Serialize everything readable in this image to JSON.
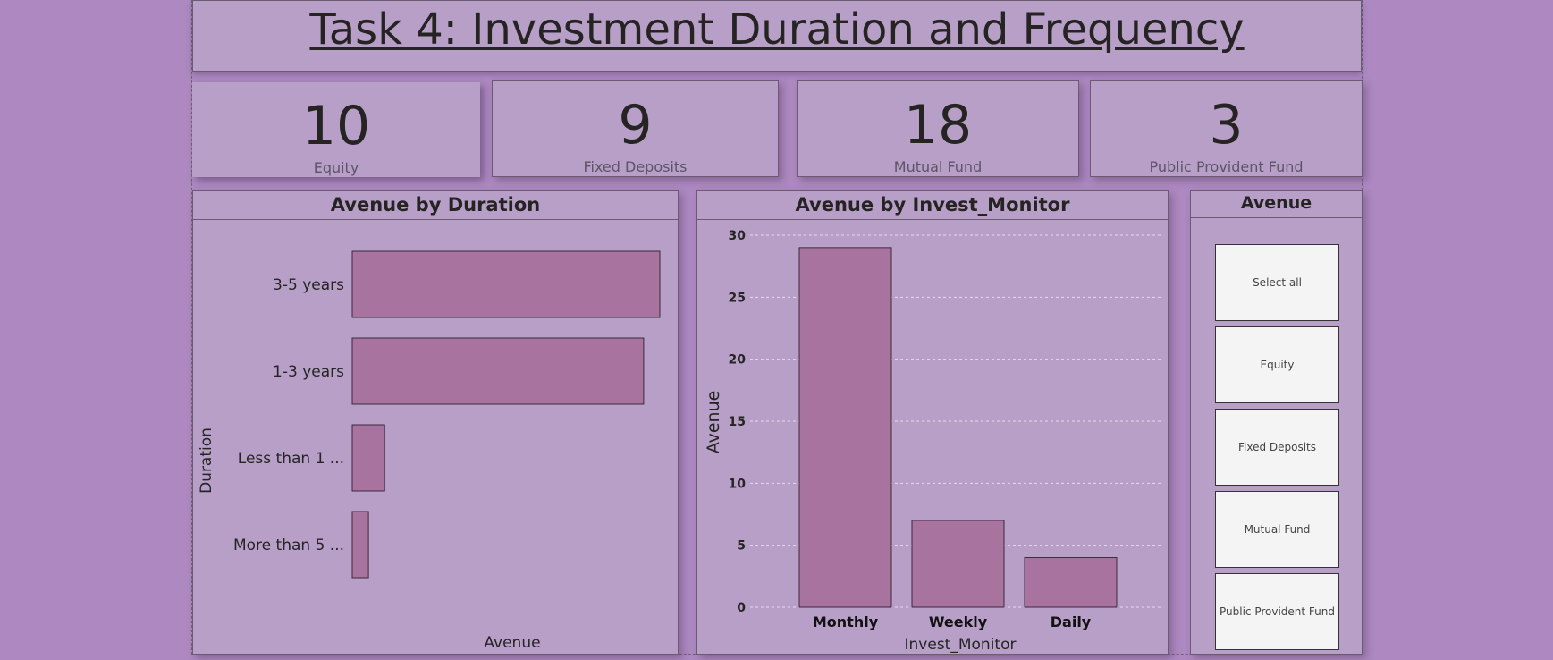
{
  "title": "Task 4: Investment Duration and Frequency",
  "cards": [
    {
      "value": "10",
      "label": "Equity"
    },
    {
      "value": "9",
      "label": "Fixed Deposits"
    },
    {
      "value": "18",
      "label": "Mutual Fund"
    },
    {
      "value": "3",
      "label": "Public Provident Fund"
    }
  ],
  "colors": {
    "background": "#ad88c1",
    "panel": "#b89fc8",
    "bar": "#a8739f"
  },
  "chart_data": [
    {
      "type": "bar",
      "orientation": "horizontal",
      "title": "Avenue by Duration",
      "xlabel": "Avenue",
      "ylabel": "Duration",
      "categories": [
        "3-5 years",
        "1-3 years",
        "Less than 1 ...",
        "More than 5 ..."
      ],
      "values": [
        19,
        18,
        2,
        1
      ],
      "xlim": [
        0,
        19
      ]
    },
    {
      "type": "bar",
      "title": "Avenue by Invest_Monitor",
      "xlabel": "Invest_Monitor",
      "ylabel": "Avenue",
      "categories": [
        "Monthly",
        "Weekly",
        "Daily"
      ],
      "values": [
        29,
        7,
        4
      ],
      "ylim": [
        0,
        30
      ],
      "yticks": [
        "0",
        "5",
        "10",
        "15",
        "20",
        "25",
        "30"
      ],
      "grid": true
    }
  ],
  "slicer": {
    "title": "Avenue",
    "items": [
      "Select all",
      "Equity",
      "Fixed Deposits",
      "Mutual Fund",
      "Public Provident Fund"
    ]
  }
}
